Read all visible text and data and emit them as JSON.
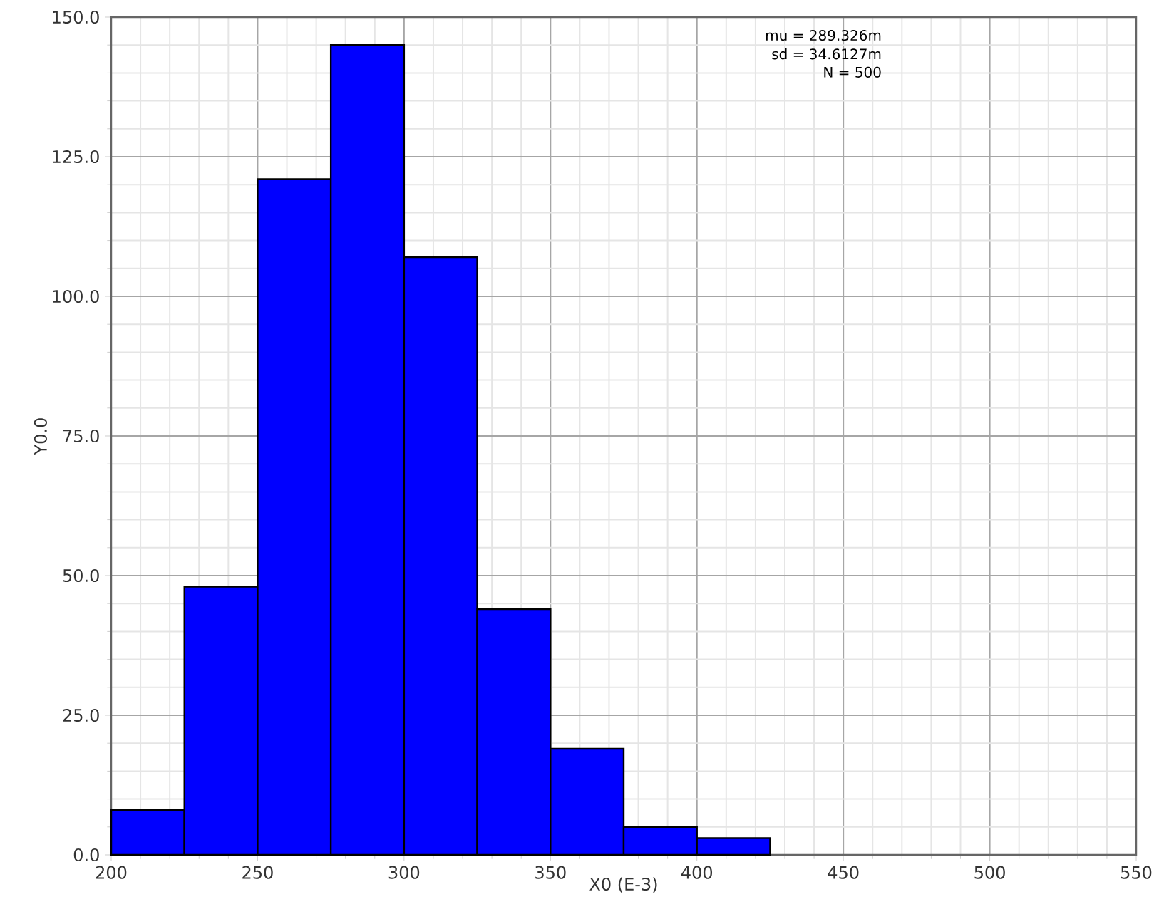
{
  "chart_data": {
    "type": "histogram",
    "xlabel": "X0 (E-3)",
    "ylabel": "Y0.0",
    "bins": [
      200,
      225,
      250,
      275,
      300,
      325,
      350,
      375,
      400,
      425
    ],
    "values": [
      8,
      48,
      121,
      145,
      107,
      44,
      19,
      5,
      3
    ],
    "color": "#0000ff",
    "xlim": [
      200,
      550
    ],
    "xticks": [
      200,
      250,
      300,
      350,
      400,
      450,
      500,
      550
    ],
    "ylim": [
      0,
      150
    ],
    "yticks": [
      {
        "value": 0,
        "label": "0.0"
      },
      {
        "value": 25,
        "label": "25.0"
      },
      {
        "value": 50,
        "label": "50.0"
      },
      {
        "value": 75,
        "label": "75.0"
      },
      {
        "value": 100,
        "label": "100.0"
      },
      {
        "value": 125,
        "label": "125.0"
      },
      {
        "value": 150,
        "label": "150.0"
      }
    ],
    "grid": true,
    "annotations": [
      "mu = 289.326m",
      "sd = 34.6127m",
      "N = 500"
    ]
  }
}
